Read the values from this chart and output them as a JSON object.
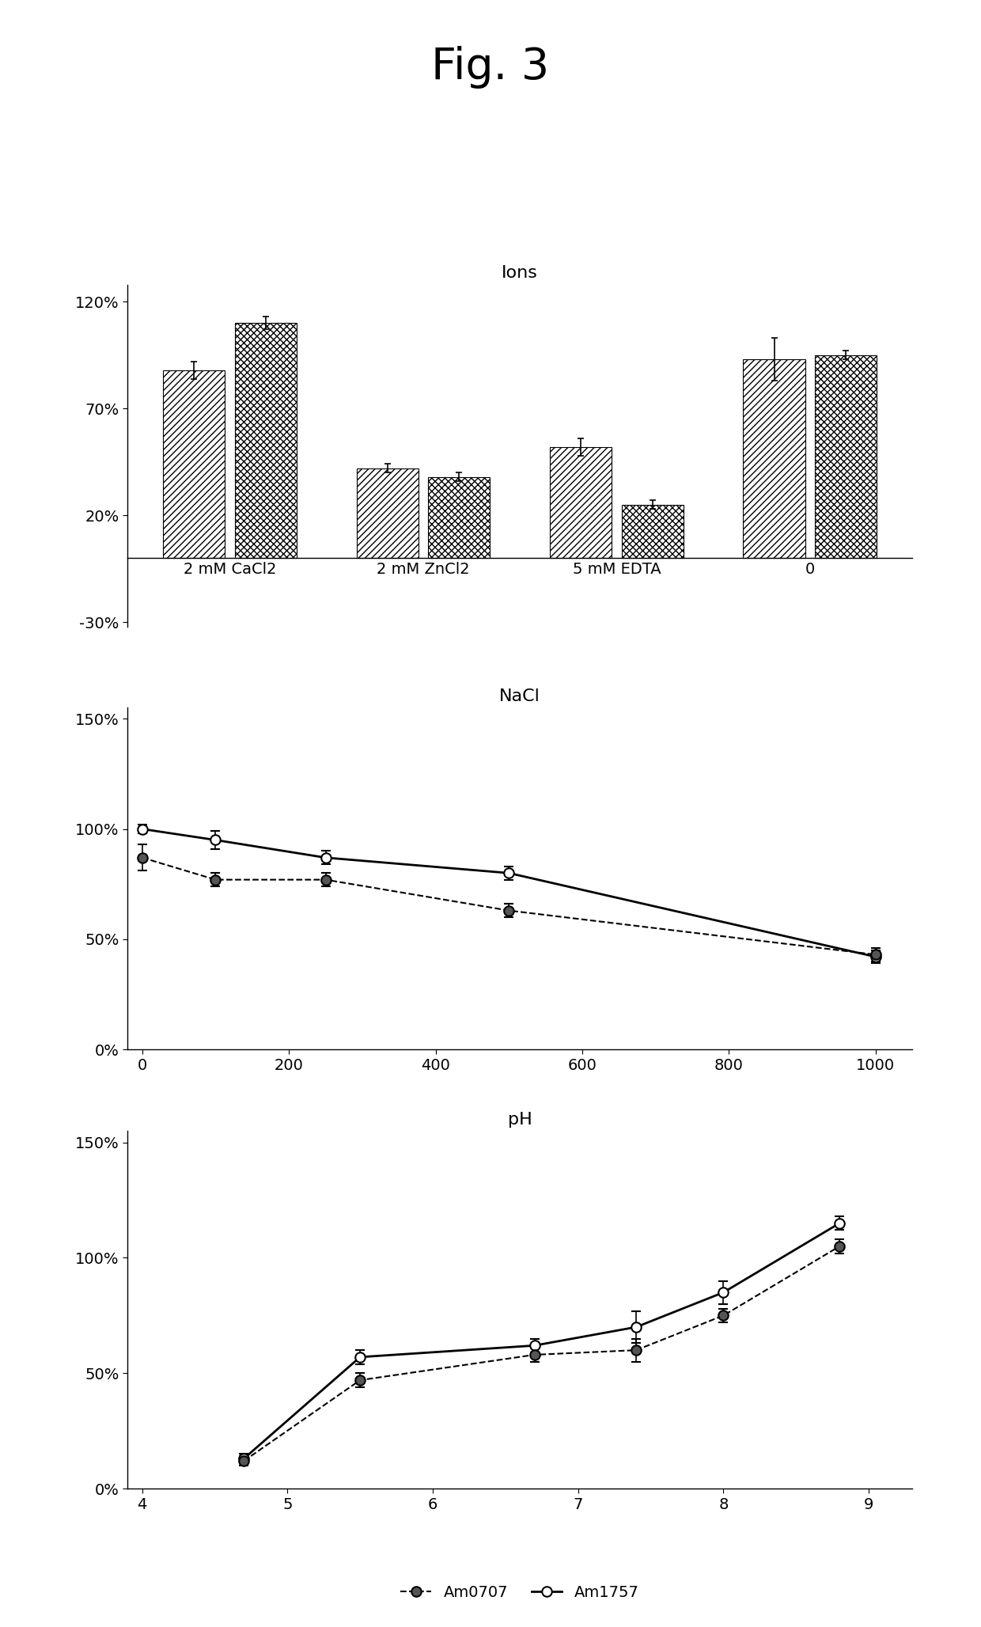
{
  "fig_title": "Fig. 3",
  "bar_title": "Ions",
  "bar_categories": [
    "2 mM CaCl2",
    "2 mM ZnCl2",
    "5 mM EDTA",
    "0"
  ],
  "bar_am0707": [
    0.88,
    0.42,
    0.52,
    0.93
  ],
  "bar_am1757": [
    1.1,
    0.38,
    0.25,
    0.95
  ],
  "bar_am0707_err": [
    0.04,
    0.02,
    0.04,
    0.1
  ],
  "bar_am1757_err": [
    0.03,
    0.02,
    0.02,
    0.02
  ],
  "bar_ylim": [
    -0.32,
    1.28
  ],
  "bar_yticks": [
    -0.3,
    0.2,
    0.7,
    1.2
  ],
  "bar_yticklabels": [
    "-30%",
    "20%",
    "70%",
    "120%"
  ],
  "nacl_title": "NaCl",
  "nacl_x": [
    0,
    100,
    250,
    500,
    1000
  ],
  "nacl_am0707": [
    0.87,
    0.77,
    0.77,
    0.63,
    0.43
  ],
  "nacl_am1757": [
    1.0,
    0.95,
    0.87,
    0.8,
    0.42
  ],
  "nacl_am0707_err": [
    0.06,
    0.03,
    0.03,
    0.03,
    0.03
  ],
  "nacl_am1757_err": [
    0.02,
    0.04,
    0.03,
    0.03,
    0.03
  ],
  "nacl_ylim": [
    0.0,
    1.55
  ],
  "nacl_yticks": [
    0.0,
    0.5,
    1.0,
    1.5
  ],
  "nacl_yticklabels": [
    "0%",
    "50%",
    "100%",
    "150%"
  ],
  "nacl_xlim": [
    -20,
    1050
  ],
  "nacl_xticks": [
    0,
    200,
    400,
    600,
    800,
    1000
  ],
  "ph_title": "pH",
  "ph_x": [
    4.7,
    5.5,
    6.7,
    7.4,
    8.0,
    8.8
  ],
  "ph_am0707": [
    0.12,
    0.47,
    0.58,
    0.6,
    0.75,
    1.05
  ],
  "ph_am1757": [
    0.13,
    0.57,
    0.62,
    0.7,
    0.85,
    1.15
  ],
  "ph_am0707_err": [
    0.02,
    0.03,
    0.03,
    0.05,
    0.03,
    0.03
  ],
  "ph_am1757_err": [
    0.02,
    0.03,
    0.03,
    0.07,
    0.05,
    0.03
  ],
  "ph_ylim": [
    0.0,
    1.55
  ],
  "ph_yticks": [
    0.0,
    0.5,
    1.0,
    1.5
  ],
  "ph_yticklabels": [
    "0%",
    "50%",
    "100%",
    "150%"
  ],
  "ph_xlim": [
    3.9,
    9.3
  ],
  "ph_xticks": [
    4,
    5,
    6,
    7,
    8,
    9
  ]
}
